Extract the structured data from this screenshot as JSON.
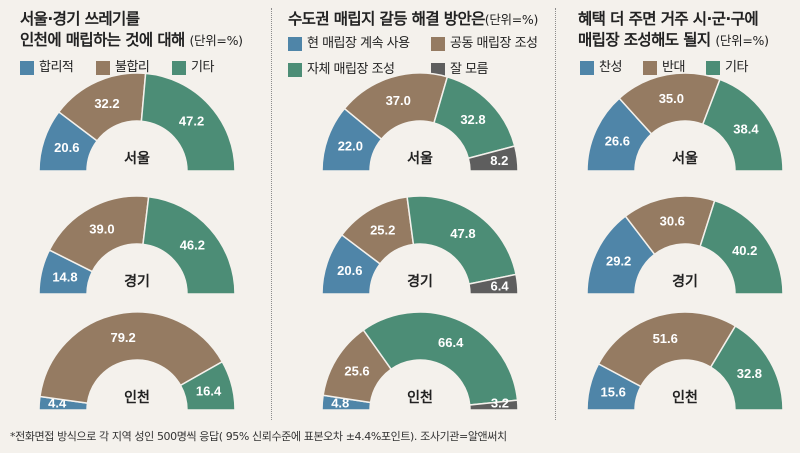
{
  "colors": {
    "blue": "#4f85a8",
    "tan": "#957b62",
    "green": "#4c8d76",
    "gray": "#5e5e5e"
  },
  "footnote": "*전화면접 방식으로 각 지역 성인 500명씩 응답( 95% 신뢰수준에 표본오차 ±4.4%포인트). 조사기관=알앤써치",
  "panels": [
    {
      "title_line1": "서울·경기 쓰레기를",
      "title_line2": "인천에 매립하는 것에 대해",
      "unit": "(단위=%)",
      "legend": [
        {
          "label": "합리적",
          "color": "#4f85a8"
        },
        {
          "label": "불합리",
          "color": "#957b62"
        },
        {
          "label": "기타",
          "color": "#4c8d76"
        }
      ]
    },
    {
      "title_line1": "수도권 매립지 갈등 해결 방안은",
      "title_line2": "",
      "unit": "(단위=%)",
      "legend": [
        {
          "label": "현 매립장 계속 사용",
          "color": "#4f85a8"
        },
        {
          "label": "공동 매립장 조성",
          "color": "#957b62"
        },
        {
          "label": "자체 매립장 조성",
          "color": "#4c8d76"
        },
        {
          "label": "잘 모름",
          "color": "#5e5e5e"
        }
      ]
    },
    {
      "title_line1": "혜택 더 주면 거주 시·군·구에",
      "title_line2": "매립장 조성해도 될지",
      "unit": "(단위=%)",
      "legend": [
        {
          "label": "찬성",
          "color": "#4f85a8"
        },
        {
          "label": "반대",
          "color": "#957b62"
        },
        {
          "label": "기타",
          "color": "#4c8d76"
        }
      ]
    }
  ],
  "chart_data": [
    {
      "type": "pie",
      "title": "서울·경기 쓰레기를 인천에 매립하는 것에 대해",
      "unit": "%",
      "categories": [
        "합리적",
        "불합리",
        "기타"
      ],
      "series": [
        {
          "name": "서울",
          "values": [
            20.6,
            32.2,
            47.2
          ]
        },
        {
          "name": "경기",
          "values": [
            14.8,
            39.0,
            46.2
          ]
        },
        {
          "name": "인천",
          "values": [
            4.4,
            79.2,
            16.4
          ]
        }
      ]
    },
    {
      "type": "pie",
      "title": "수도권 매립지 갈등 해결 방안은",
      "unit": "%",
      "categories": [
        "현 매립장 계속 사용",
        "공동 매립장 조성",
        "자체 매립장 조성",
        "잘 모름"
      ],
      "series": [
        {
          "name": "서울",
          "values": [
            22.0,
            37.0,
            32.8,
            8.2
          ]
        },
        {
          "name": "경기",
          "values": [
            20.6,
            25.2,
            47.8,
            6.4
          ]
        },
        {
          "name": "인천",
          "values": [
            4.8,
            25.6,
            66.4,
            3.2
          ]
        }
      ]
    },
    {
      "type": "pie",
      "title": "혜택 더 주면 거주 시·군·구에 매립장 조성해도 될지",
      "unit": "%",
      "categories": [
        "찬성",
        "반대",
        "기타"
      ],
      "series": [
        {
          "name": "서울",
          "values": [
            26.6,
            35.0,
            38.4
          ]
        },
        {
          "name": "경기",
          "values": [
            29.2,
            30.6,
            40.2
          ]
        },
        {
          "name": "인천",
          "values": [
            15.6,
            51.6,
            32.8
          ]
        }
      ]
    }
  ]
}
